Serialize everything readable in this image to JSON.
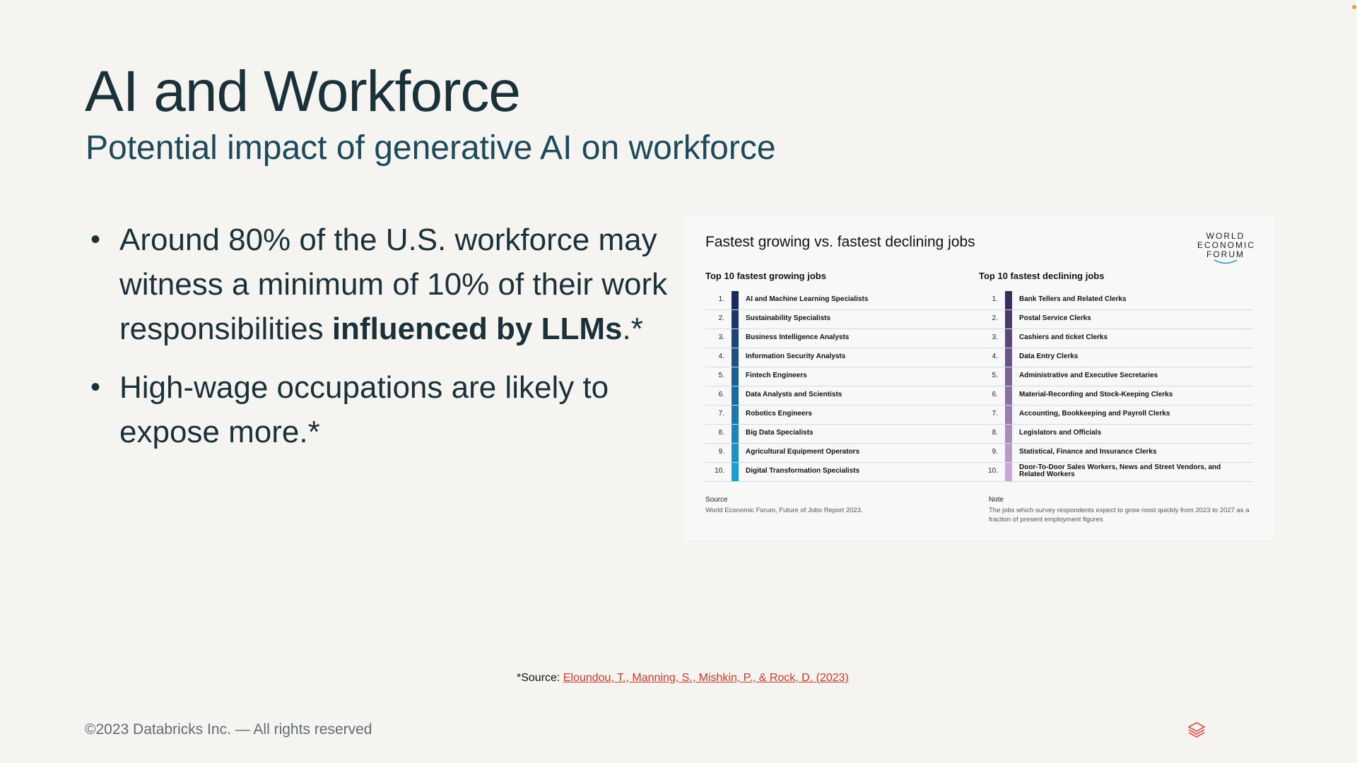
{
  "slide": {
    "title": "AI and Workforce",
    "subtitle": "Potential impact of generative AI on workforce",
    "bullets": [
      {
        "pre": "Around 80% of the U.S. workforce may witness a minimum of 10% of their work responsibilities ",
        "bold": "influenced by LLMs",
        "post": ".*"
      },
      {
        "pre": "High-wage occupations are likely to expose more.*",
        "bold": "",
        "post": ""
      }
    ],
    "source_prefix": "*Source: ",
    "source_link": "Eloundou, T., Manning, S., Mishkin, P., & Rock, D. (2023)",
    "copyright": "©2023 Databricks Inc. — All rights reserved",
    "footer_icon": "databricks-layers-icon"
  },
  "figure": {
    "title": "Fastest growing vs. fastest declining jobs",
    "logo": [
      "WORLD",
      "ECONOMIC",
      "FORUM"
    ],
    "growing_header": "Top 10 fastest growing jobs",
    "declining_header": "Top 10 fastest declining jobs",
    "growing_color_gradient": [
      "#1b2a5e",
      "#1a9fd4"
    ],
    "declining_color_gradient": [
      "#3b2a5e",
      "#c8a8d8"
    ],
    "growing": [
      {
        "rank": "1.",
        "job": "AI and Machine Learning Specialists"
      },
      {
        "rank": "2.",
        "job": "Sustainability Specialists"
      },
      {
        "rank": "3.",
        "job": "Business Intelligence Analysts"
      },
      {
        "rank": "4.",
        "job": "Information Security Analysts"
      },
      {
        "rank": "5.",
        "job": "Fintech Engineers"
      },
      {
        "rank": "6.",
        "job": "Data Analysts and Scientists"
      },
      {
        "rank": "7.",
        "job": "Robotics Engineers"
      },
      {
        "rank": "8.",
        "job": "Big Data Specialists"
      },
      {
        "rank": "9.",
        "job": "Agricultural Equipment Operators"
      },
      {
        "rank": "10.",
        "job": "Digital Transformation Specialists"
      }
    ],
    "declining": [
      {
        "rank": "1.",
        "job": "Bank Tellers and Related Clerks"
      },
      {
        "rank": "2.",
        "job": "Postal Service Clerks"
      },
      {
        "rank": "3.",
        "job": "Cashiers and ticket Clerks"
      },
      {
        "rank": "4.",
        "job": "Data Entry Clerks"
      },
      {
        "rank": "5.",
        "job": "Administrative and Executive Secretaries"
      },
      {
        "rank": "6.",
        "job": "Material-Recording and Stock-Keeping Clerks"
      },
      {
        "rank": "7.",
        "job": "Accounting, Bookkeeping and Payroll Clerks"
      },
      {
        "rank": "8.",
        "job": "Legislators and Officials"
      },
      {
        "rank": "9.",
        "job": "Statistical, Finance and Insurance Clerks"
      },
      {
        "rank": "10.",
        "job": "Door-To-Door Sales Workers, News and Street Vendors, and Related Workers"
      }
    ],
    "source_label": "Source",
    "source_text": "World Economic Forum, Future of Jobs Report 2023.",
    "note_label": "Note",
    "note_text": "The jobs which survey respondents expect to grow most quickly from 2023 to 2027 as a fraction of present employment figures"
  },
  "colors": {
    "background": "#f5f4f1",
    "title": "#1b3139",
    "subtitle": "#1c4a5c",
    "link": "#c93c2c",
    "accent_dot": "#f0a02a"
  }
}
